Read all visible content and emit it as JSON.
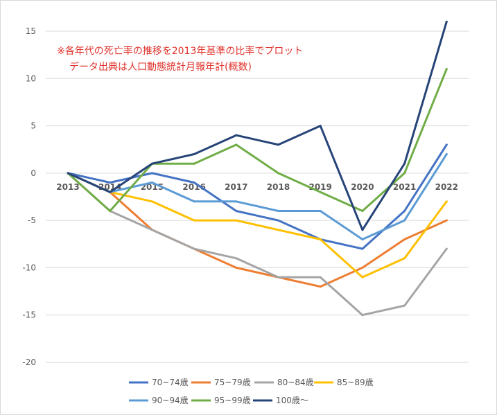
{
  "chart_data": {
    "type": "line",
    "title": "",
    "xlabel": "",
    "ylabel": "",
    "categories": [
      "2013",
      "2014",
      "2015",
      "2016",
      "2017",
      "2018",
      "2019",
      "2020",
      "2021",
      "2022"
    ],
    "ylim": [
      -20,
      15
    ],
    "yticks": [
      15,
      10,
      5,
      0,
      -5,
      -10,
      -15,
      -20
    ],
    "grid": true,
    "legend_position": "bottom",
    "annotations": [
      "※各年代の死亡率の推移を2013年基準の比率でプロット",
      "データ出典は人口動態統計月報年計(概数)"
    ],
    "series": [
      {
        "name": "70~74歳",
        "color": "#4472c4",
        "values": [
          0,
          -1,
          0,
          -1,
          -4,
          -5,
          -7,
          -8,
          -4,
          3
        ]
      },
      {
        "name": "75~79歳",
        "color": "#ed7d31",
        "values": [
          0,
          -2,
          -6,
          -8,
          -10,
          -11,
          -12,
          -10,
          -7,
          -5
        ]
      },
      {
        "name": "80~84歳",
        "color": "#a5a5a5",
        "values": [
          0,
          -4,
          -6,
          -8,
          -9,
          -11,
          -11,
          -15,
          -14,
          -8
        ]
      },
      {
        "name": "85~89歳",
        "color": "#ffc000",
        "values": [
          0,
          -2,
          -3,
          -5,
          -5,
          -6,
          -7,
          -11,
          -9,
          -3
        ]
      },
      {
        "name": "90~94歳",
        "color": "#5b9bd5",
        "values": [
          0,
          -2,
          -1,
          -3,
          -3,
          -4,
          -4,
          -7,
          -5,
          2
        ]
      },
      {
        "name": "95~99歳",
        "color": "#70ad47",
        "values": [
          0,
          -4,
          1,
          1,
          3,
          0,
          -2,
          -4,
          0,
          11
        ]
      },
      {
        "name": "100歳～",
        "color": "#264478",
        "values": [
          0,
          -2,
          1,
          2,
          4,
          3,
          5,
          -6,
          1,
          16
        ]
      }
    ]
  }
}
